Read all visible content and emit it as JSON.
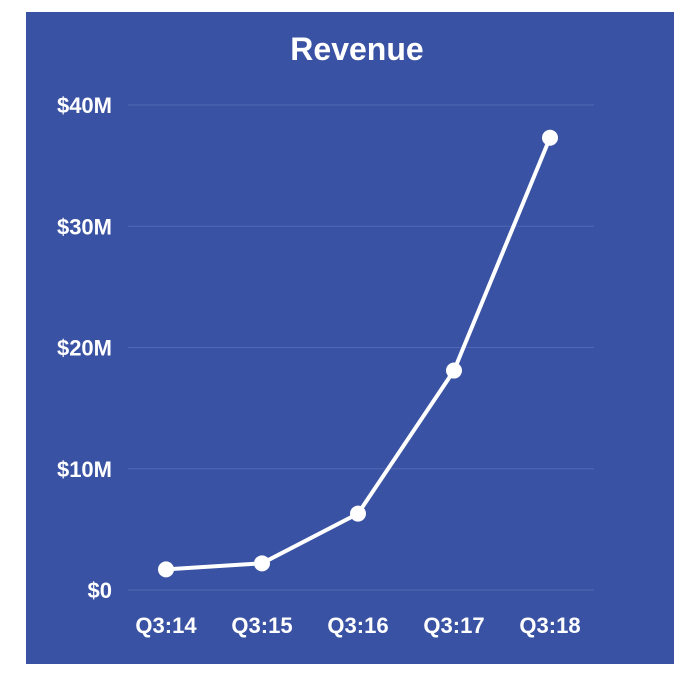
{
  "chart_data": {
    "type": "line",
    "title": "Revenue",
    "categories": [
      "Q3:14",
      "Q3:15",
      "Q3:16",
      "Q3:17",
      "Q3:18"
    ],
    "series": [
      {
        "values": [
          1.7,
          2.2,
          6.3,
          18.1,
          37.3
        ]
      }
    ],
    "ylim": [
      0,
      40
    ],
    "yticks": [
      0,
      10,
      20,
      30,
      40
    ],
    "ytick_labels": [
      "$0",
      "$10M",
      "$20M",
      "$30M",
      "$40M"
    ],
    "grid": true,
    "colors": {
      "background": "#3a52a3",
      "line": "#ffffff",
      "grid": "#5368b5",
      "text": "#ffffff"
    }
  }
}
